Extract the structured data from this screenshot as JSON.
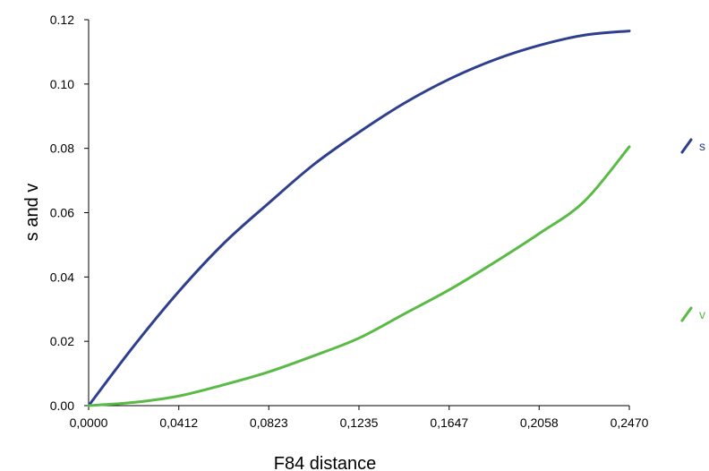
{
  "chart_data": {
    "type": "line",
    "title": "",
    "xlabel": "F84 distance",
    "ylabel": "s and v",
    "xlim": [
      0.0,
      0.247
    ],
    "ylim": [
      0.0,
      0.12
    ],
    "x_ticks": [
      0.0,
      0.0412,
      0.0823,
      0.1235,
      0.1647,
      0.2058,
      0.247
    ],
    "x_tick_labels": [
      "0,0000",
      "0,0412",
      "0,0823",
      "0,1235",
      "0,1647",
      "0,2058",
      "0,2470"
    ],
    "y_ticks": [
      0.0,
      0.02,
      0.04,
      0.06,
      0.08,
      0.1,
      0.12
    ],
    "y_tick_labels": [
      "0.00",
      "0.02",
      "0.04",
      "0.06",
      "0.08",
      "0.10",
      "0.12"
    ],
    "grid": false,
    "legend_placement": "right",
    "series": [
      {
        "name": "s",
        "color": "#2e3f8f",
        "x": [
          0.0,
          0.0206,
          0.0412,
          0.0618,
          0.0823,
          0.1029,
          0.1235,
          0.1441,
          0.1647,
          0.1853,
          0.2058,
          0.2264,
          0.247
        ],
        "y": [
          0.0,
          0.0185,
          0.0355,
          0.0505,
          0.063,
          0.075,
          0.085,
          0.094,
          0.1015,
          0.1075,
          0.112,
          0.1152,
          0.1165
        ]
      },
      {
        "name": "v",
        "color": "#5aba46",
        "x": [
          0.0,
          0.0206,
          0.0412,
          0.0618,
          0.0823,
          0.1029,
          0.1235,
          0.1441,
          0.1647,
          0.1853,
          0.2058,
          0.2264,
          0.247
        ],
        "y": [
          0.0,
          0.001,
          0.003,
          0.0065,
          0.0105,
          0.0155,
          0.021,
          0.0285,
          0.036,
          0.0445,
          0.0535,
          0.0635,
          0.0805
        ]
      }
    ]
  }
}
